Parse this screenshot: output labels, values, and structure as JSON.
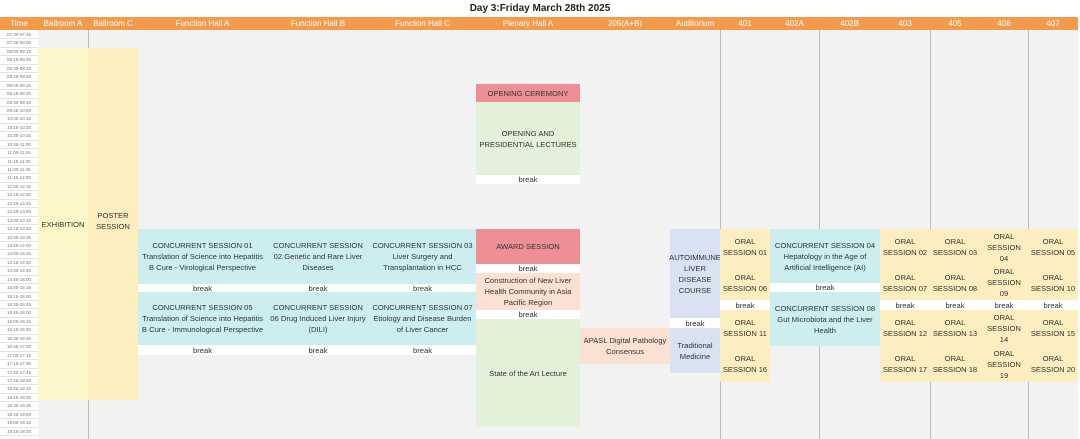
{
  "title": "Day 3:Friday March 28th 2025",
  "columns": [
    "Time",
    "Ballroom A",
    "Ballroom C",
    "Function Hall A",
    "Function Hall B",
    "Function Hall C",
    "Plenary Hall A",
    "205(A+B)",
    "Auditorium",
    "401",
    "402A",
    "402B",
    "403",
    "405",
    "406",
    "407"
  ],
  "times": [
    "07:30-07:45",
    "07:45-08:00",
    "08:00-08:15",
    "08:15-08:30",
    "08:30-08:45",
    "08:45-09:00",
    "09:00-09:15",
    "09:15-09:30",
    "09:30-09:45",
    "09:45-10:00",
    "10:00-10:15",
    "10:15-10:30",
    "10:30-10:45",
    "10:45-11:00",
    "11:00-11:15",
    "11:15-11:30",
    "11:30-11:45",
    "11:45-12:00",
    "12:00-12:15",
    "12:15-12:30",
    "12:30-12:45",
    "12:45-13:00",
    "13:00-13:15",
    "13:15-13:30",
    "13:30-13:45",
    "13:45-14:00",
    "14:00-14:15",
    "14:15-14:30",
    "14:30-14:45",
    "14:45-15:00",
    "15:00-15:15",
    "15:15-15:30",
    "15:30-15:45",
    "15:45-16:00",
    "16:00-16:15",
    "16:15-16:30",
    "16:30-16:45",
    "16:45-17:00",
    "17:00-17:15",
    "17:15-17:30",
    "17:30-17:45",
    "17:45-18:00",
    "18:00-18:15",
    "18:15-18:30",
    "18:30-18:45",
    "18:45-19:00",
    "19:00-19:15",
    "19:15-19:30"
  ],
  "sessions": {
    "exhibition": "EXHIBITION",
    "poster": "POSTER SESSION",
    "break": "break",
    "cs01": "CONCURRENT SESSION 01 Translation of Science into Hepatitis B Cure - Virological Perspective",
    "cs02": "CONCURRENT SESSION 02 Genetic and Rare Liver Diseases",
    "cs03": "CONCURRENT SESSION 03 Liver Surgery and Transplantation in HCC",
    "cs04": "CONCURRENT SESSION 04 Hepatology in the Age of Artificial Intelligence (AI)",
    "cs05": "CONCURRENT SESSION 05 Translation of Science into Hepatitis B Cure - Immunological Perspective",
    "cs06": "CONCURRENT SESSION 06 Drug Induced Liver Injury (DILI)",
    "cs07": "CONCURRENT SESSION 07 Etiology and Disease Burden of Liver Cancer",
    "cs08": "CONCURRENT SESSION 08 Gut Microbiota and the Liver Health",
    "opening": "OPENING CEREMONY",
    "presidential": "OPENING AND PRESIDENTIAL LECTURES",
    "award": "AWARD SESSION",
    "construction": "Construction of New Liver Health Community in Asia Pacific Region",
    "state": "State of the Art Lecture",
    "apasl": "APASL Digital Pathology Consensus",
    "autoimmune": "AUTOIMMUNE LIVER DISEASE COURSE",
    "traditional": "Traditional Medicine",
    "oral": [
      "ORAL SESSION 01",
      "ORAL SESSION 02",
      "ORAL SESSION 03",
      "ORAL SESSION 04",
      "ORAL SESSION 05",
      "ORAL SESSION 06",
      "ORAL SESSION 07",
      "ORAL SESSION 08",
      "ORAL SESSION 09",
      "ORAL SESSION 10",
      "ORAL SESSION 11",
      "ORAL SESSION 12",
      "ORAL SESSION 13",
      "ORAL SESSION 14",
      "ORAL SESSION 15",
      "ORAL SESSION 16",
      "ORAL SESSION 17",
      "ORAL SESSION 18",
      "ORAL SESSION 19",
      "ORAL SESSION 20"
    ]
  },
  "colors": {
    "header": "#f39a4b",
    "concurrent": "#cdeef0",
    "ceremony": "#ee8f96",
    "lecture": "#e4f1d9",
    "oral": "#fdeec0",
    "course": "#d9e2f2"
  }
}
